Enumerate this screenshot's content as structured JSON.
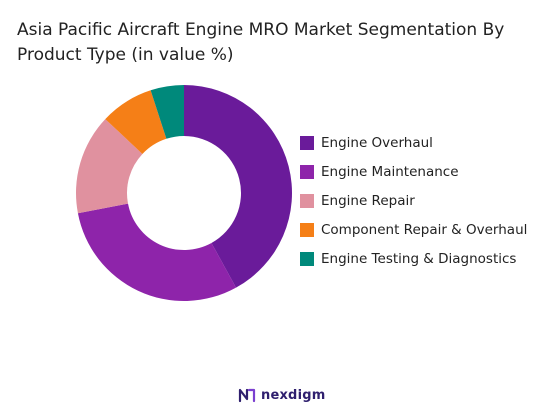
{
  "chart_data": {
    "type": "pie",
    "title": "Asia Pacific Aircraft Engine MRO Market Segmentation By Product Type (in value %)",
    "categories": [
      "Engine Overhaul",
      "Engine Maintenance",
      "Engine Repair",
      "Component Repair & Overhaul",
      "Engine Testing & Diagnostics"
    ],
    "values": [
      42,
      30,
      15,
      8,
      5
    ],
    "colors": [
      "#6a1b9a",
      "#8e24aa",
      "#e0919f",
      "#f57f17",
      "#00897b"
    ],
    "donut": true,
    "legend_position": "right"
  },
  "brand": {
    "name": "nexdigm",
    "icon": "nexdigm-logo-icon",
    "colors": {
      "mark": "#2f1f6e",
      "accent": "#7b3fd0"
    }
  }
}
